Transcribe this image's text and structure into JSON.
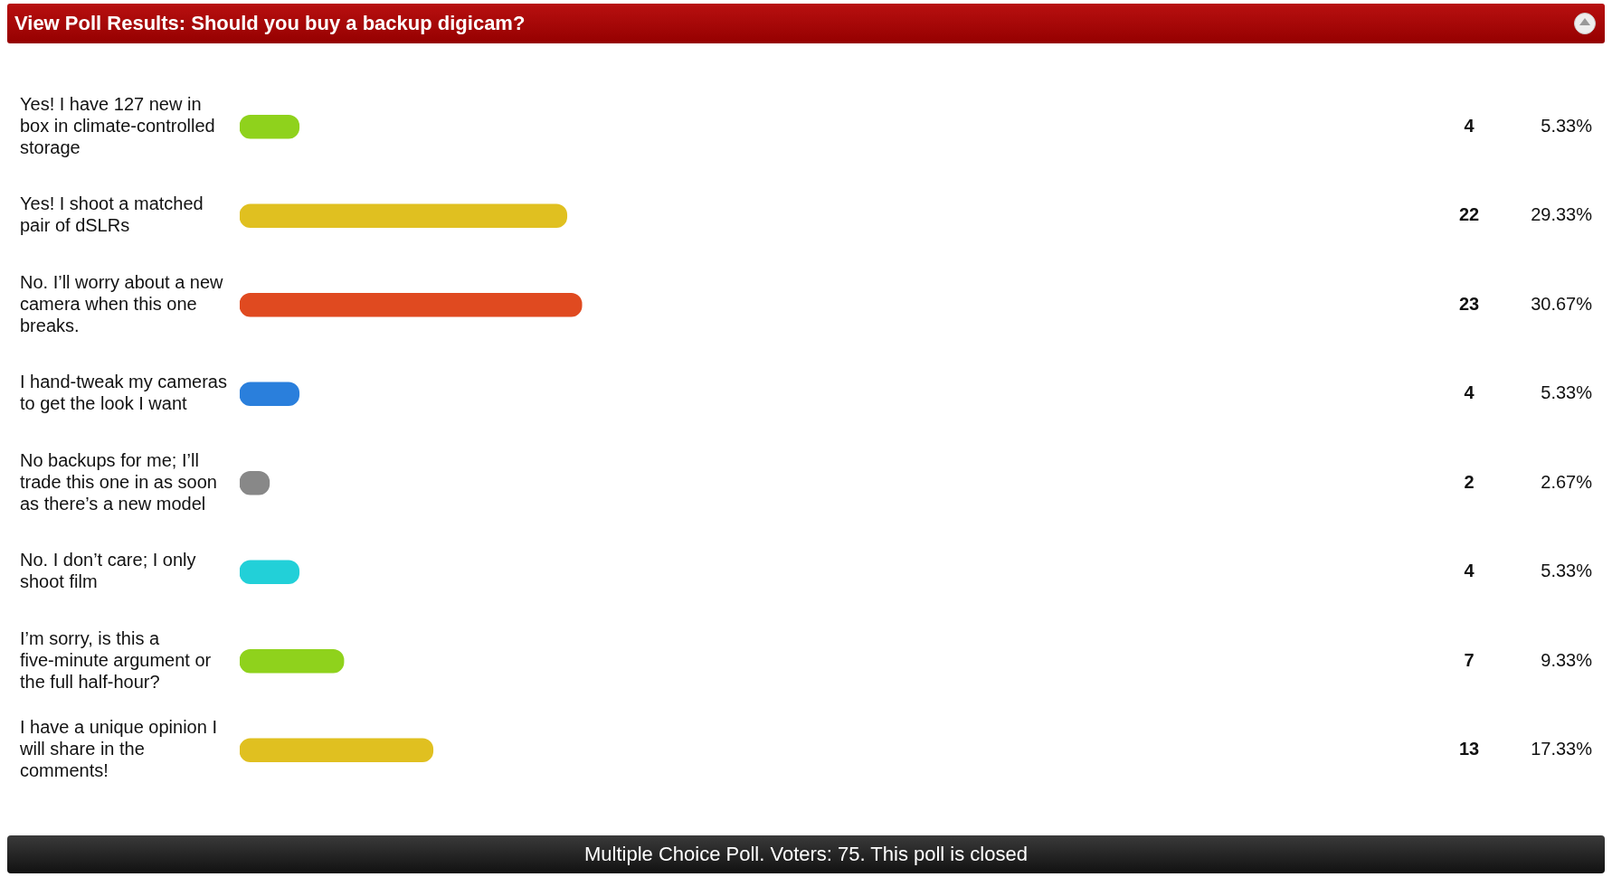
{
  "chart_data": {
    "type": "bar",
    "orientation": "horizontal",
    "title": "View Poll Results: Should you buy a backup digicam?",
    "categories": [
      "Yes! I have 127 new in box in climate-controlled storage",
      "Yes! I shoot a matched pair of dSLRs",
      "No. I’ll worry about a new camera when this one breaks.",
      "I hand-tweak my cameras to get the look I want",
      "No backups for me; I’ll trade this one in as soon as there’s a new model",
      "No. I don’t care; I only shoot film",
      "I’m sorry, is this a five-minute argument or the full half-hour?",
      "I have a unique opinion I will share in the comments!"
    ],
    "values": [
      4,
      22,
      23,
      4,
      2,
      4,
      7,
      13
    ],
    "colors": [
      "#8fd21c",
      "#e0c020",
      "#e04a20",
      "#2a7fdc",
      "#888888",
      "#22d0d8",
      "#8fd21c",
      "#e0c020"
    ],
    "value_labels": [
      "4",
      "22",
      "23",
      "4",
      "2",
      "4",
      "7",
      "13"
    ],
    "tick_labels": "y",
    "legend": false,
    "annotations": [
      "Multiple Choice Poll. Voters: 75. This poll is closed",
      "5.33%",
      "29.33%",
      "30.67%",
      "5.33%",
      "2.67%",
      "5.33%",
      "9.33%",
      "17.33%"
    ]
  }
}
